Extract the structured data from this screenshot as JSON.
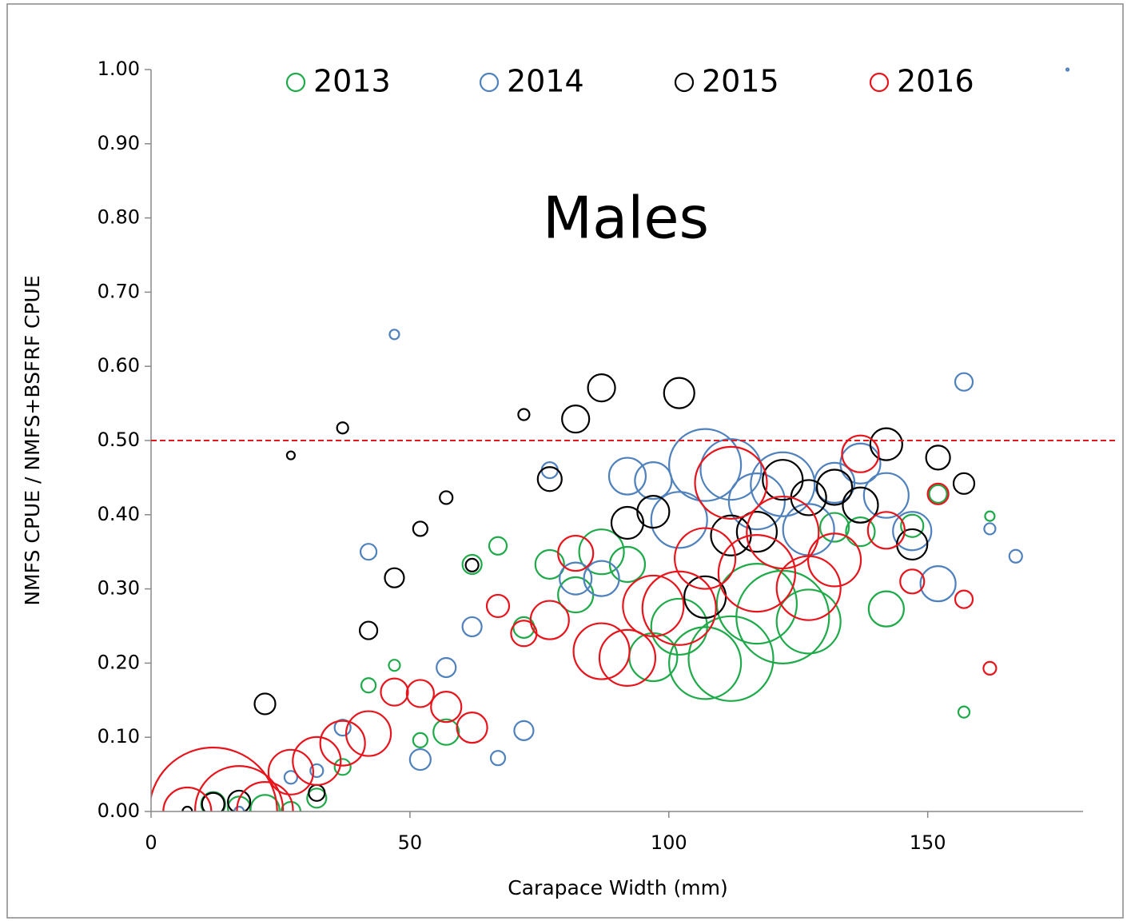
{
  "chart_data": {
    "type": "bubble",
    "title": "Males",
    "x_label": "Carapace Width (mm)",
    "y_label": "NMFS CPUE / NMFS+BSFRF CPUE",
    "xlim": [
      0,
      180
    ],
    "xticks": [
      0,
      50,
      100,
      150
    ],
    "ylim": [
      0,
      1
    ],
    "yticks": [
      {
        "value": 0,
        "label": "0.00"
      },
      {
        "value": 0.1,
        "label": "0.10"
      },
      {
        "value": 0.2,
        "label": "0.20"
      },
      {
        "value": 0.3,
        "label": "0.30"
      },
      {
        "value": 0.4,
        "label": "0.40"
      },
      {
        "value": 0.5,
        "label": "0.50"
      },
      {
        "value": 0.6,
        "label": "0.60"
      },
      {
        "value": 0.7,
        "label": "0.70"
      },
      {
        "value": 0.8,
        "label": "0.80"
      },
      {
        "value": 0.9,
        "label": "0.90"
      },
      {
        "value": 1,
        "label": "1.00"
      }
    ],
    "legend": "top",
    "reference_line": {
      "value": 0.5,
      "color": "#e31a1c",
      "style": "dashed"
    },
    "series": [
      {
        "name": "2013",
        "color": "#1faa4a",
        "x": [
          12,
          17,
          22,
          27,
          32,
          37,
          42,
          47,
          52,
          57,
          62,
          67,
          72,
          77,
          82,
          87,
          92,
          97,
          102,
          107,
          112,
          117,
          122,
          127,
          132,
          137,
          142,
          147,
          152,
          157,
          162
        ],
        "values": [
          0.01,
          0.005,
          0.003,
          0,
          0.018,
          0.06,
          0.17,
          0.197,
          0.096,
          0.107,
          0.333,
          0.358,
          0.248,
          0.333,
          0.292,
          0.35,
          0.333,
          0.208,
          0.249,
          0.2,
          0.206,
          0.28,
          0.262,
          0.256,
          0.383,
          0.377,
          0.273,
          0.385,
          0.428,
          0.134,
          0.398
        ],
        "sizes": [
          2.25,
          1.96,
          3.24,
          1.44,
          1.44,
          1,
          0.81,
          0.49,
          0.81,
          2.56,
          1.44,
          1.21,
          1.69,
          3.24,
          4.84,
          7.84,
          4.84,
          9,
          12.25,
          20.25,
          28.09,
          25,
          33.64,
          16,
          3.24,
          3.24,
          4.84,
          1.96,
          1.21,
          0.49,
          0.36
        ]
      },
      {
        "name": "2014",
        "color": "#4f81bd",
        "x": [
          17,
          27,
          32,
          37,
          42,
          47,
          52,
          57,
          62,
          67,
          72,
          77,
          82,
          87,
          92,
          97,
          102,
          107,
          112,
          117,
          122,
          127,
          132,
          137,
          142,
          147,
          152,
          157,
          162,
          167,
          177
        ],
        "values": [
          0,
          0.046,
          0.055,
          0.113,
          0.35,
          0.643,
          0.07,
          0.194,
          0.249,
          0.072,
          0.109,
          0.46,
          0.314,
          0.314,
          0.452,
          0.446,
          0.393,
          0.467,
          0.461,
          0.418,
          0.441,
          0.38,
          0.443,
          0.469,
          0.426,
          0.378,
          0.307,
          0.579,
          0.381,
          0.344,
          1
        ],
        "sizes": [
          0.36,
          0.64,
          0.64,
          1,
          1,
          0.36,
          1.69,
          1.44,
          1.44,
          0.81,
          1.44,
          1,
          4,
          4.84,
          5.29,
          5.29,
          12.25,
          20.25,
          14.44,
          12.25,
          16,
          10.24,
          6.25,
          6.25,
          7.84,
          5.76,
          4.84,
          1.21,
          0.49,
          0.64,
          0.01
        ]
      },
      {
        "name": "2015",
        "color": "#000000",
        "x": [
          7,
          12,
          17,
          22,
          27,
          32,
          37,
          42,
          47,
          52,
          57,
          62,
          72,
          77,
          82,
          87,
          92,
          97,
          102,
          107,
          112,
          117,
          122,
          127,
          132,
          137,
          142,
          147,
          152,
          157
        ],
        "values": [
          0,
          0.01,
          0.013,
          0.145,
          0.48,
          0.025,
          0.517,
          0.244,
          0.315,
          0.381,
          0.423,
          0.332,
          0.535,
          0.448,
          0.529,
          0.571,
          0.389,
          0.404,
          0.564,
          0.289,
          0.372,
          0.377,
          0.447,
          0.423,
          0.437,
          0.413,
          0.495,
          0.36,
          0.477,
          0.442
        ],
        "sizes": [
          0.36,
          1.96,
          1.96,
          1.69,
          0.25,
          1,
          0.49,
          1.21,
          1.44,
          0.81,
          0.64,
          0.64,
          0.49,
          2.25,
          2.89,
          2.89,
          4,
          4,
          3.61,
          6.76,
          6.25,
          6.25,
          6.25,
          4.84,
          4.84,
          4.84,
          4,
          3.61,
          2.25,
          1.69
        ]
      },
      {
        "name": "2016",
        "color": "#e8141c",
        "x": [
          7,
          12,
          17,
          22,
          27,
          32,
          37,
          42,
          47,
          52,
          57,
          62,
          67,
          72,
          77,
          82,
          87,
          92,
          97,
          102,
          107,
          112,
          117,
          122,
          127,
          132,
          137,
          142,
          147,
          152,
          157,
          162
        ],
        "values": [
          0,
          0,
          0.002,
          0.002,
          0.053,
          0.068,
          0.092,
          0.105,
          0.161,
          0.159,
          0.141,
          0.113,
          0.277,
          0.24,
          0.258,
          0.348,
          0.216,
          0.207,
          0.277,
          0.274,
          0.341,
          0.443,
          0.321,
          0.376,
          0.301,
          0.339,
          0.482,
          0.379,
          0.31,
          0.428,
          0.286,
          0.193
        ],
        "sizes": [
          9,
          64,
          30.25,
          12.25,
          7.84,
          9,
          7.84,
          7.84,
          2.89,
          2.89,
          3.61,
          3.61,
          1.96,
          2.56,
          5.76,
          4.84,
          12.25,
          12.25,
          14.44,
          21.16,
          14.44,
          20.25,
          23.04,
          20.25,
          16,
          10.89,
          5.29,
          5.29,
          2.25,
          1.69,
          1.21,
          0.64
        ]
      }
    ]
  }
}
